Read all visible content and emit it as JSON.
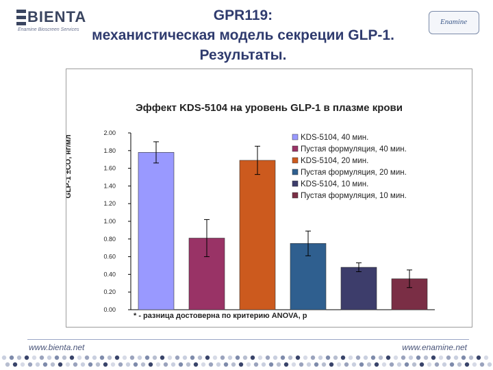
{
  "header": {
    "title_line1": "GPR119:",
    "title_line2": "механистическая модель секреции GLP-1.",
    "title_line3": "Результаты.",
    "left_logo_text": "BIENTA",
    "left_logo_sub": "Enamine Bioscreen Services",
    "right_logo_text": "Enamine"
  },
  "footer": {
    "left_url": "www.bienta.net",
    "right_url": "www.enamine.net"
  },
  "chart_data": {
    "type": "bar",
    "title": "Эффект KDS-5104 на уровень GLP-1 в плазме крови",
    "ylabel": "GLP-1 ±СО, нг/мл",
    "xlabel": "",
    "ylim": [
      0,
      2.0
    ],
    "yticks": [
      "0.00",
      "0.20",
      "0.40",
      "0.60",
      "0.80",
      "1.00",
      "1.20",
      "1.40",
      "1.60",
      "1.80",
      "2.00"
    ],
    "series": [
      {
        "name": "KDS-5104, 40 мин.",
        "value": 1.78,
        "err": 0.12,
        "color": "#9999ff"
      },
      {
        "name": "Пустая формуляция, 40 мин.",
        "value": 0.81,
        "err": 0.21,
        "color": "#993366"
      },
      {
        "name": "KDS-5104, 20 мин.",
        "value": 1.69,
        "err": 0.16,
        "color": "#cc5a1e"
      },
      {
        "name": "Пустая формуляция, 20 мин.",
        "value": 0.75,
        "err": 0.14,
        "color": "#2f5f8f"
      },
      {
        "name": "KDS-5104, 10 мин.",
        "value": 0.48,
        "err": 0.05,
        "color": "#3d3d6b"
      },
      {
        "name": "Пустая формуляция, 10 мин.",
        "value": 0.35,
        "err": 0.1,
        "color": "#7a2e45"
      }
    ],
    "annotation_star": "*",
    "note": "* - разница достоверна по критерию ANOVA, р",
    "legend": "top-right",
    "grid": false
  }
}
